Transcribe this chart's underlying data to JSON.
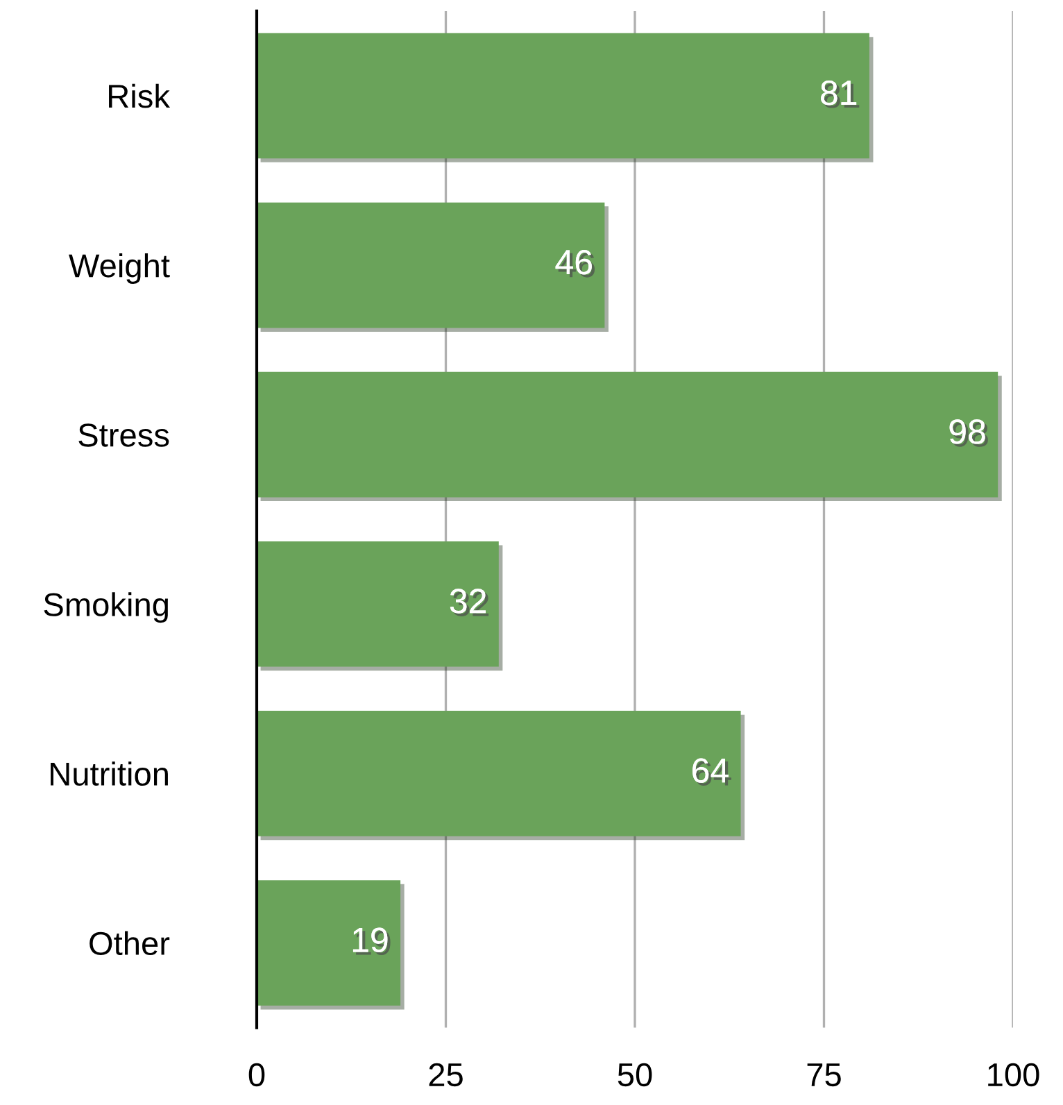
{
  "chart_data": {
    "type": "bar",
    "orientation": "horizontal",
    "categories": [
      "Risk",
      "Weight",
      "Stress",
      "Smoking",
      "Nutrition",
      "Other"
    ],
    "values": [
      81,
      46,
      98,
      32,
      64,
      19
    ],
    "color": "#6aa35a",
    "xlim": [
      0,
      100
    ],
    "xticks": [
      0,
      25,
      50,
      75,
      100
    ],
    "grid": "x",
    "data_labels": true
  }
}
